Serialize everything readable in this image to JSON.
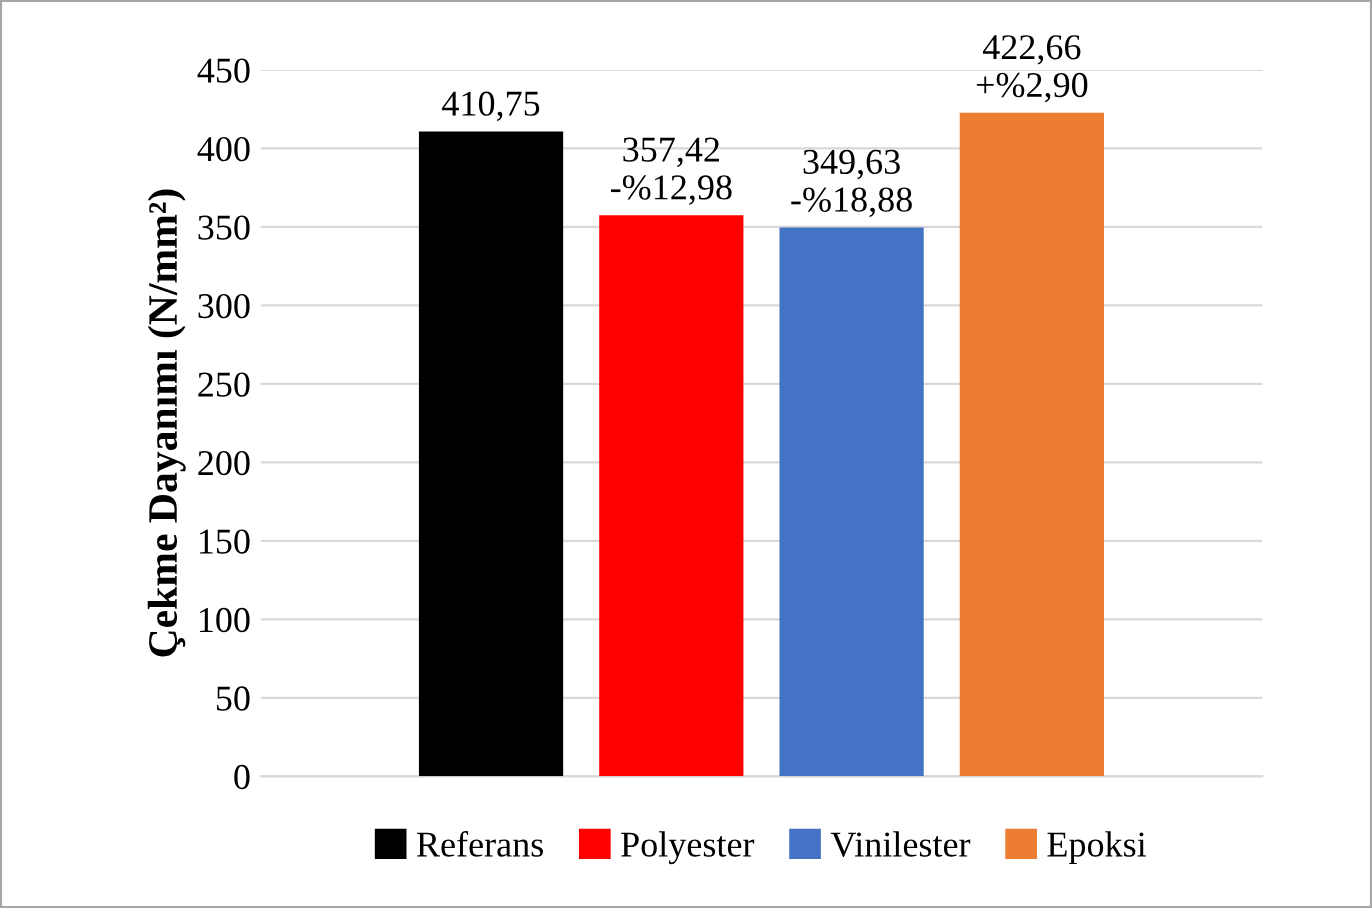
{
  "chart_data": {
    "type": "bar",
    "ylabel": "Çekme Dayanımı (N/mm²)",
    "categories": [
      null
    ],
    "series": [
      {
        "name": "Referans",
        "color": "#000000",
        "values": [
          410.75
        ],
        "value_labels": [
          "410,75"
        ]
      },
      {
        "name": "Polyester",
        "color": "#ff0000",
        "values": [
          357.42
        ],
        "value_labels": [
          "357,42\n-%12,98"
        ]
      },
      {
        "name": "Vinilester",
        "color": "#4472c4",
        "values": [
          349.63
        ],
        "value_labels": [
          "349,63\n-%18,88"
        ]
      },
      {
        "name": "Epoksi",
        "color": "#ed7d31",
        "values": [
          422.66
        ],
        "value_labels": [
          "422,66\n+%2,90"
        ]
      }
    ],
    "ylim": [
      0,
      450
    ],
    "yticks": [
      0,
      50,
      100,
      150,
      200,
      250,
      300,
      350,
      400,
      450
    ],
    "grid": "y",
    "legend": "bottom"
  }
}
